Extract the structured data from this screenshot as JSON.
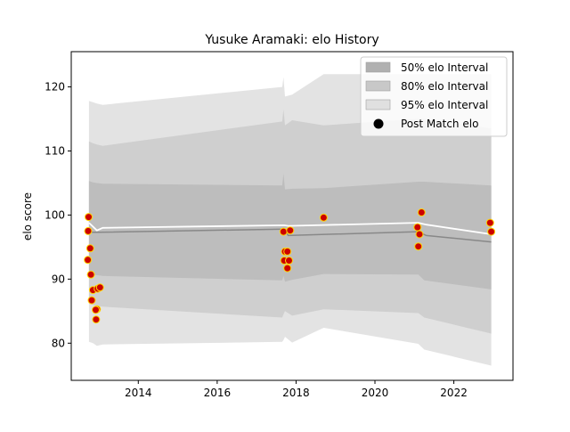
{
  "chart_data": {
    "type": "line",
    "title": "Yusuke Aramaki: elo History",
    "xlabel": "",
    "ylabel": "elo score",
    "xlim": [
      2012.3,
      2023.5
    ],
    "ylim": [
      74.2,
      125.5
    ],
    "xticks": [
      2014,
      2016,
      2018,
      2020,
      2022
    ],
    "yticks": [
      80,
      90,
      100,
      110,
      120
    ],
    "grid": false,
    "legend_position": "top-right",
    "legend": [
      {
        "label": "50% elo Interval",
        "kind": "band",
        "color": "#b0b0b0"
      },
      {
        "label": "80% elo Interval",
        "kind": "band",
        "color": "#c8c8c8"
      },
      {
        "label": "95% elo Interval",
        "kind": "band",
        "color": "#e0e0e0"
      },
      {
        "label": "Post Match elo",
        "kind": "marker",
        "color": "#000000"
      }
    ],
    "colors": {
      "band_95": "#e3e3e3",
      "band_80": "#cfcfcf",
      "band_50": "#bdbdbd",
      "median_line": "#888888",
      "mean_line": "#ffffff",
      "point_fill": "#cc0000",
      "point_edge": "#ffd700"
    },
    "bands": {
      "x": [
        2012.75,
        2012.85,
        2012.95,
        2013.1,
        2017.65,
        2017.68,
        2017.72,
        2017.9,
        2018.7,
        2021.1,
        2021.25,
        2022.95
      ],
      "p95_low": [
        80.2,
        80.0,
        79.6,
        79.8,
        80.2,
        80.5,
        81.0,
        80.1,
        82.4,
        79.9,
        79.0,
        76.5
      ],
      "p95_high": [
        117.8,
        117.6,
        117.4,
        117.2,
        120.0,
        121.5,
        118.5,
        118.8,
        122.0,
        122.0,
        122.0,
        122.0
      ],
      "p80_low": [
        86.2,
        86.0,
        85.8,
        85.7,
        84.0,
        84.5,
        85.0,
        84.3,
        85.3,
        84.7,
        84.0,
        81.5
      ],
      "p80_high": [
        111.5,
        111.2,
        111.0,
        110.8,
        114.6,
        116.5,
        114.0,
        114.8,
        114.0,
        115.0,
        115.0,
        113.5
      ],
      "p50_low": [
        90.8,
        90.7,
        90.6,
        90.5,
        89.8,
        90.5,
        89.6,
        89.9,
        90.8,
        90.7,
        89.8,
        88.4
      ],
      "p50_high": [
        105.3,
        105.1,
        105.0,
        104.9,
        104.6,
        106.5,
        104.0,
        104.1,
        104.2,
        105.2,
        105.2,
        104.6
      ]
    },
    "median_line": {
      "x": [
        2012.75,
        2013.0,
        2017.7,
        2017.8,
        2021.1,
        2021.3,
        2022.95
      ],
      "y": [
        97.3,
        97.3,
        97.8,
        96.8,
        97.4,
        96.8,
        95.8
      ]
    },
    "mean_line": {
      "x": [
        2012.75,
        2012.95,
        2013.1,
        2017.7,
        2017.8,
        2021.1,
        2021.3,
        2022.95
      ],
      "y": [
        98.8,
        97.6,
        98.0,
        98.4,
        98.3,
        98.8,
        98.5,
        97.0
      ]
    },
    "points": {
      "x": [
        2012.72,
        2012.73,
        2012.74,
        2012.78,
        2012.8,
        2012.82,
        2012.85,
        2012.93,
        2012.95,
        2012.97,
        2013.03,
        2012.92,
        2017.68,
        2017.7,
        2017.72,
        2017.78,
        2017.78,
        2017.82,
        2017.85,
        2018.7,
        2021.08,
        2021.1,
        2021.13,
        2021.18,
        2022.92,
        2022.95
      ],
      "y": [
        93.0,
        97.5,
        99.7,
        94.8,
        90.7,
        86.7,
        88.3,
        83.7,
        85.3,
        88.5,
        88.7,
        85.2,
        97.4,
        92.9,
        94.3,
        91.7,
        94.3,
        92.9,
        97.6,
        99.6,
        98.1,
        95.1,
        97.0,
        100.4,
        98.8,
        97.4
      ]
    }
  }
}
